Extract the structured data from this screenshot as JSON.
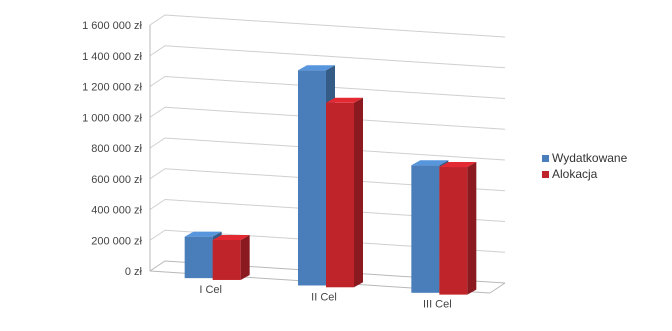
{
  "chart_data": {
    "type": "bar",
    "categories": [
      "I Cel",
      "II Cel",
      "III Cel"
    ],
    "series": [
      {
        "name": "Wydatkowane",
        "values": [
          270000,
          1400000,
          830000
        ],
        "color": "#4a7ebb"
      },
      {
        "name": "Alokacja",
        "values": [
          260000,
          1200000,
          830000
        ],
        "color": "#c0242b"
      }
    ],
    "y_ticks": [
      "0 zł",
      "200 000 zł",
      "400 000 zł",
      "600 000 zł",
      "800 000 zł",
      "1 000 000 zł",
      "1 200 000 zł",
      "1 400 000 zł",
      "1 600 000 zł"
    ],
    "ylim": [
      0,
      1600000
    ],
    "grid": true,
    "style": "3d-clustered-column",
    "legend_position": "right"
  }
}
